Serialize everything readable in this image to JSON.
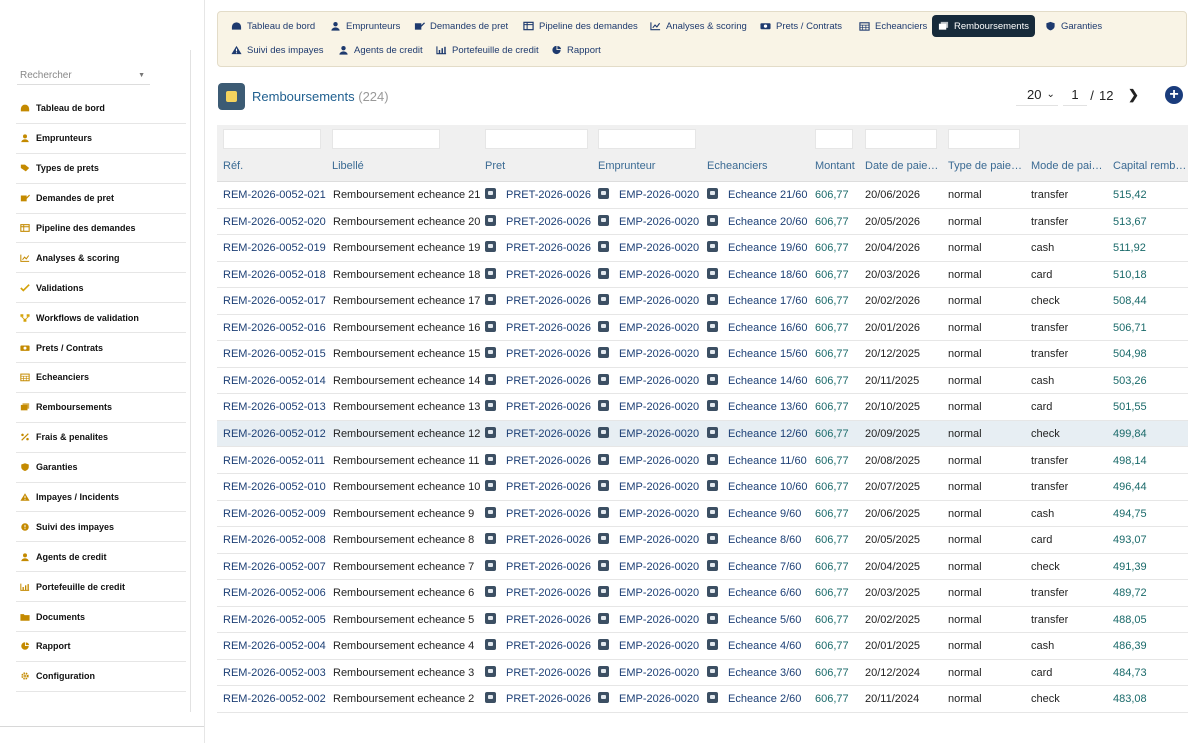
{
  "search": {
    "placeholder": "Rechercher"
  },
  "sidebar": {
    "items": [
      {
        "label": "Tableau de bord",
        "icon": "dashboard-icon"
      },
      {
        "label": "Emprunteurs",
        "icon": "user-icon"
      },
      {
        "label": "Types de prets",
        "icon": "tags-icon"
      },
      {
        "label": "Demandes de pret",
        "icon": "edit-icon"
      },
      {
        "label": "Pipeline des demandes",
        "icon": "columns-icon"
      },
      {
        "label": "Analyses & scoring",
        "icon": "chart-icon"
      },
      {
        "label": "Validations",
        "icon": "check-icon"
      },
      {
        "label": "Workflows de validation",
        "icon": "workflow-icon"
      },
      {
        "label": "Prets / Contrats",
        "icon": "money-icon"
      },
      {
        "label": "Echeanciers",
        "icon": "calendar-icon"
      },
      {
        "label": "Remboursements",
        "icon": "receipt-icon"
      },
      {
        "label": "Frais & penalites",
        "icon": "percent-icon"
      },
      {
        "label": "Garanties",
        "icon": "shield-icon"
      },
      {
        "label": "Impayes / Incidents",
        "icon": "warning-icon"
      },
      {
        "label": "Suivi des impayes",
        "icon": "alert-circle-icon"
      },
      {
        "label": "Agents de credit",
        "icon": "agent-icon"
      },
      {
        "label": "Portefeuille de credit",
        "icon": "portfolio-chart-icon"
      },
      {
        "label": "Documents",
        "icon": "folder-icon"
      },
      {
        "label": "Rapport",
        "icon": "pie-chart-icon"
      },
      {
        "label": "Configuration",
        "icon": "gear-icon"
      }
    ]
  },
  "topnav": {
    "tabs": [
      {
        "label": "Tableau de bord",
        "icon": "dashboard-icon"
      },
      {
        "label": "Emprunteurs",
        "icon": "user-icon"
      },
      {
        "label": "Demandes de pret",
        "icon": "edit-icon"
      },
      {
        "label": "Pipeline des demandes",
        "icon": "columns-icon"
      },
      {
        "label": "Analyses & scoring",
        "icon": "chart-icon"
      },
      {
        "label": "Prets / Contrats",
        "icon": "money-icon"
      },
      {
        "label": "Echeanciers",
        "icon": "calendar-icon"
      },
      {
        "label": "Remboursements",
        "icon": "receipt-icon",
        "active": true
      },
      {
        "label": "Garanties",
        "icon": "shield-icon"
      },
      {
        "label": "Suivi des impayes",
        "icon": "warning-icon"
      },
      {
        "label": "Agents de credit",
        "icon": "agent-icon"
      },
      {
        "label": "Portefeuille de credit",
        "icon": "portfolio-chart-icon"
      },
      {
        "label": "Rapport",
        "icon": "pie-chart-icon"
      }
    ]
  },
  "page": {
    "title": "Remboursements",
    "count": "(224)",
    "per_page": "20",
    "current_page": "1",
    "page_sep": "/",
    "total_pages": "12",
    "next": "❯",
    "add": "+"
  },
  "colors": {
    "active_tab_bg": "#172a3a",
    "link": "#1c3f75",
    "amount": "#1a6a6a",
    "nav_bg": "#f9f4e6"
  },
  "table": {
    "headers": [
      "Réf.",
      "Libellé",
      "Pret",
      "Emprunteur",
      "Echeanciers",
      "Montant",
      "Date de paie…",
      "Type de paie…",
      "Mode de pai…",
      "Capital remb…"
    ],
    "rows": [
      {
        "ref": "REM-2026-0052-021",
        "libelle": "Remboursement echeance 21",
        "pret": "PRET-2026-0026",
        "emprunteur": "EMP-2026-0020",
        "echeance": "Echeance 21/60",
        "montant": "606,77",
        "date": "20/06/2026",
        "type": "normal",
        "mode": "transfer",
        "capital": "515,42"
      },
      {
        "ref": "REM-2026-0052-020",
        "libelle": "Remboursement echeance 20",
        "pret": "PRET-2026-0026",
        "emprunteur": "EMP-2026-0020",
        "echeance": "Echeance 20/60",
        "montant": "606,77",
        "date": "20/05/2026",
        "type": "normal",
        "mode": "transfer",
        "capital": "513,67"
      },
      {
        "ref": "REM-2026-0052-019",
        "libelle": "Remboursement echeance 19",
        "pret": "PRET-2026-0026",
        "emprunteur": "EMP-2026-0020",
        "echeance": "Echeance 19/60",
        "montant": "606,77",
        "date": "20/04/2026",
        "type": "normal",
        "mode": "cash",
        "capital": "511,92"
      },
      {
        "ref": "REM-2026-0052-018",
        "libelle": "Remboursement echeance 18",
        "pret": "PRET-2026-0026",
        "emprunteur": "EMP-2026-0020",
        "echeance": "Echeance 18/60",
        "montant": "606,77",
        "date": "20/03/2026",
        "type": "normal",
        "mode": "card",
        "capital": "510,18"
      },
      {
        "ref": "REM-2026-0052-017",
        "libelle": "Remboursement echeance 17",
        "pret": "PRET-2026-0026",
        "emprunteur": "EMP-2026-0020",
        "echeance": "Echeance 17/60",
        "montant": "606,77",
        "date": "20/02/2026",
        "type": "normal",
        "mode": "check",
        "capital": "508,44"
      },
      {
        "ref": "REM-2026-0052-016",
        "libelle": "Remboursement echeance 16",
        "pret": "PRET-2026-0026",
        "emprunteur": "EMP-2026-0020",
        "echeance": "Echeance 16/60",
        "montant": "606,77",
        "date": "20/01/2026",
        "type": "normal",
        "mode": "transfer",
        "capital": "506,71"
      },
      {
        "ref": "REM-2026-0052-015",
        "libelle": "Remboursement echeance 15",
        "pret": "PRET-2026-0026",
        "emprunteur": "EMP-2026-0020",
        "echeance": "Echeance 15/60",
        "montant": "606,77",
        "date": "20/12/2025",
        "type": "normal",
        "mode": "transfer",
        "capital": "504,98"
      },
      {
        "ref": "REM-2026-0052-014",
        "libelle": "Remboursement echeance 14",
        "pret": "PRET-2026-0026",
        "emprunteur": "EMP-2026-0020",
        "echeance": "Echeance 14/60",
        "montant": "606,77",
        "date": "20/11/2025",
        "type": "normal",
        "mode": "cash",
        "capital": "503,26"
      },
      {
        "ref": "REM-2026-0052-013",
        "libelle": "Remboursement echeance 13",
        "pret": "PRET-2026-0026",
        "emprunteur": "EMP-2026-0020",
        "echeance": "Echeance 13/60",
        "montant": "606,77",
        "date": "20/10/2025",
        "type": "normal",
        "mode": "card",
        "capital": "501,55"
      },
      {
        "ref": "REM-2026-0052-012",
        "libelle": "Remboursement echeance 12",
        "pret": "PRET-2026-0026",
        "emprunteur": "EMP-2026-0020",
        "echeance": "Echeance 12/60",
        "montant": "606,77",
        "date": "20/09/2025",
        "type": "normal",
        "mode": "check",
        "capital": "499,84",
        "highlight": true
      },
      {
        "ref": "REM-2026-0052-011",
        "libelle": "Remboursement echeance 11",
        "pret": "PRET-2026-0026",
        "emprunteur": "EMP-2026-0020",
        "echeance": "Echeance 11/60",
        "montant": "606,77",
        "date": "20/08/2025",
        "type": "normal",
        "mode": "transfer",
        "capital": "498,14"
      },
      {
        "ref": "REM-2026-0052-010",
        "libelle": "Remboursement echeance 10",
        "pret": "PRET-2026-0026",
        "emprunteur": "EMP-2026-0020",
        "echeance": "Echeance 10/60",
        "montant": "606,77",
        "date": "20/07/2025",
        "type": "normal",
        "mode": "transfer",
        "capital": "496,44"
      },
      {
        "ref": "REM-2026-0052-009",
        "libelle": "Remboursement echeance 9",
        "pret": "PRET-2026-0026",
        "emprunteur": "EMP-2026-0020",
        "echeance": "Echeance 9/60",
        "montant": "606,77",
        "date": "20/06/2025",
        "type": "normal",
        "mode": "cash",
        "capital": "494,75"
      },
      {
        "ref": "REM-2026-0052-008",
        "libelle": "Remboursement echeance 8",
        "pret": "PRET-2026-0026",
        "emprunteur": "EMP-2026-0020",
        "echeance": "Echeance 8/60",
        "montant": "606,77",
        "date": "20/05/2025",
        "type": "normal",
        "mode": "card",
        "capital": "493,07"
      },
      {
        "ref": "REM-2026-0052-007",
        "libelle": "Remboursement echeance 7",
        "pret": "PRET-2026-0026",
        "emprunteur": "EMP-2026-0020",
        "echeance": "Echeance 7/60",
        "montant": "606,77",
        "date": "20/04/2025",
        "type": "normal",
        "mode": "check",
        "capital": "491,39"
      },
      {
        "ref": "REM-2026-0052-006",
        "libelle": "Remboursement echeance 6",
        "pret": "PRET-2026-0026",
        "emprunteur": "EMP-2026-0020",
        "echeance": "Echeance 6/60",
        "montant": "606,77",
        "date": "20/03/2025",
        "type": "normal",
        "mode": "transfer",
        "capital": "489,72"
      },
      {
        "ref": "REM-2026-0052-005",
        "libelle": "Remboursement echeance 5",
        "pret": "PRET-2026-0026",
        "emprunteur": "EMP-2026-0020",
        "echeance": "Echeance 5/60",
        "montant": "606,77",
        "date": "20/02/2025",
        "type": "normal",
        "mode": "transfer",
        "capital": "488,05"
      },
      {
        "ref": "REM-2026-0052-004",
        "libelle": "Remboursement echeance 4",
        "pret": "PRET-2026-0026",
        "emprunteur": "EMP-2026-0020",
        "echeance": "Echeance 4/60",
        "montant": "606,77",
        "date": "20/01/2025",
        "type": "normal",
        "mode": "cash",
        "capital": "486,39"
      },
      {
        "ref": "REM-2026-0052-003",
        "libelle": "Remboursement echeance 3",
        "pret": "PRET-2026-0026",
        "emprunteur": "EMP-2026-0020",
        "echeance": "Echeance 3/60",
        "montant": "606,77",
        "date": "20/12/2024",
        "type": "normal",
        "mode": "card",
        "capital": "484,73"
      },
      {
        "ref": "REM-2026-0052-002",
        "libelle": "Remboursement echeance 2",
        "pret": "PRET-2026-0026",
        "emprunteur": "EMP-2026-0020",
        "echeance": "Echeance 2/60",
        "montant": "606,77",
        "date": "20/11/2024",
        "type": "normal",
        "mode": "check",
        "capital": "483,08"
      }
    ]
  }
}
